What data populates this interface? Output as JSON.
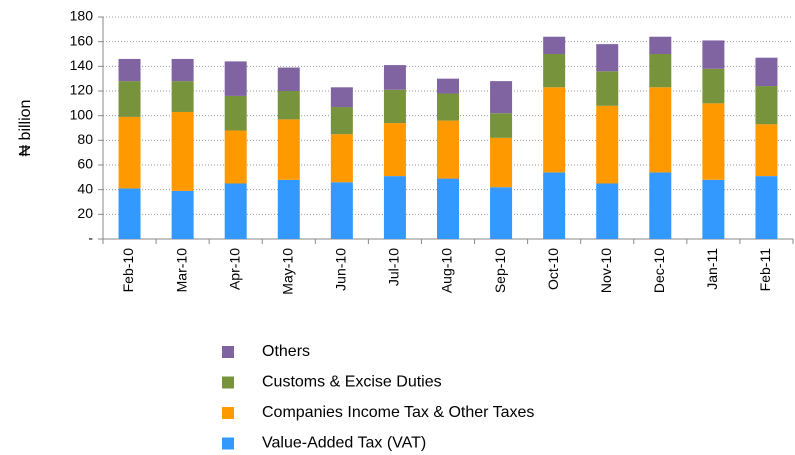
{
  "chart_data": {
    "type": "stacked_bar",
    "y_label": "₦ billion",
    "categories": [
      "Feb-10",
      "Mar-10",
      "Apr-10",
      "May-10",
      "Jun-10",
      "Jul-10",
      "Aug-10",
      "Sep-10",
      "Oct-10",
      "Nov-10",
      "Dec-10",
      "Jan-11",
      "Feb-11"
    ],
    "series": [
      {
        "name": "Value-Added Tax (VAT)",
        "color": "#3399ff",
        "values": [
          41,
          39,
          45,
          48,
          46,
          51,
          49,
          42,
          54,
          45,
          54,
          48,
          51
        ]
      },
      {
        "name": "Companies Income Tax & Other Taxes",
        "color": "#ff9900",
        "values": [
          58,
          64,
          43,
          49,
          39,
          43,
          47,
          40,
          69,
          63,
          69,
          62,
          42
        ]
      },
      {
        "name": "Customs & Excise Duties",
        "color": "#77933c",
        "values": [
          29,
          25,
          28,
          23,
          22,
          27,
          22,
          20,
          27,
          28,
          27,
          28,
          31
        ]
      },
      {
        "name": "Others",
        "color": "#8064a2",
        "values": [
          18,
          18,
          28,
          19,
          16,
          20,
          12,
          26,
          14,
          22,
          14,
          23,
          23
        ]
      }
    ],
    "ylim": [
      0,
      180
    ],
    "yticks": [
      {
        "value": 0,
        "label": "-"
      },
      20,
      40,
      60,
      80,
      100,
      120,
      140,
      160,
      180
    ],
    "grid": true,
    "legend": "bottom"
  }
}
